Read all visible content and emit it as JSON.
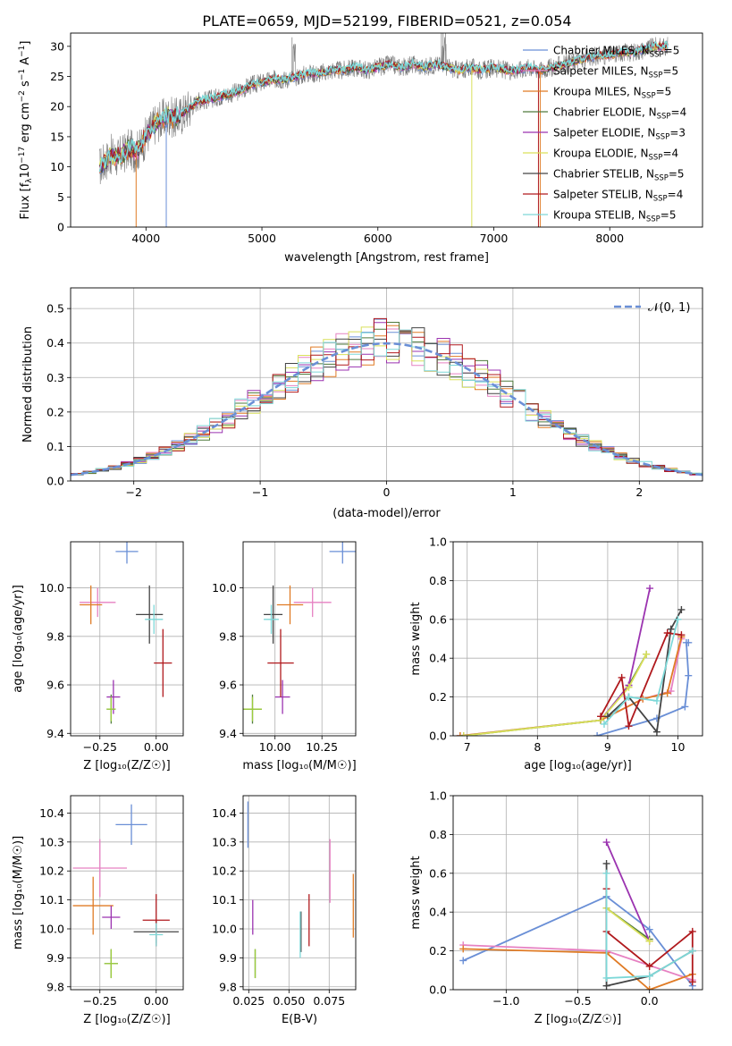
{
  "figure_title": "PLATE=0659, MJD=52199, FIBERID=0521, z=0.054",
  "colors": {
    "Chabrier MILES": "#6a8fd6",
    "Salpeter MILES": "#e681c2",
    "Kroupa MILES": "#e07b25",
    "Chabrier ELODIE": "#4f7a3c",
    "Salpeter ELODIE": "#9b33b0",
    "Kroupa ELODIE": "#d9e05a",
    "Chabrier STELIB": "#444444",
    "Salpeter STELIB": "#b0191d",
    "Kroupa STELIB": "#7dd8d8",
    "gaussian": "#6a8fd6",
    "grid": "#b0b0b0",
    "mass_kroupa_elodie": "#9ccc3c"
  },
  "chart_data": [
    {
      "type": "line",
      "title": "PLATE=0659, MJD=52199, FIBERID=0521, z=0.054",
      "xlabel": "wavelength [Angstrom, rest frame]",
      "ylabel": "Flux [f_λ 10^-17 erg cm^-2 s^-1 A^-1]",
      "xlim": [
        3350,
        8800
      ],
      "ylim": [
        0,
        32.2
      ],
      "xticks": [
        4000,
        5000,
        6000,
        7000,
        8000
      ],
      "yticks": [
        0,
        5,
        10,
        15,
        20,
        25,
        30
      ],
      "legend_position": "right",
      "grid": false,
      "legend": [
        {
          "name": "Chabrier MILES",
          "n": "5"
        },
        {
          "name": "Salpeter MILES",
          "n": "5"
        },
        {
          "name": "Kroupa MILES",
          "n": "5"
        },
        {
          "name": "Chabrier ELODIE",
          "n": "4"
        },
        {
          "name": "Salpeter ELODIE",
          "n": "3"
        },
        {
          "name": "Kroupa ELODIE",
          "n": "4"
        },
        {
          "name": "Chabrier STELIB",
          "n": "5"
        },
        {
          "name": "Salpeter STELIB",
          "n": "4"
        },
        {
          "name": "Kroupa STELIB",
          "n": "5"
        }
      ],
      "spectrum": {
        "x": [
          3600,
          3650,
          3700,
          3750,
          3800,
          3850,
          3900,
          3950,
          4000,
          4050,
          4100,
          4150,
          4200,
          4250,
          4300,
          4350,
          4400,
          4450,
          4500,
          4600,
          4700,
          4800,
          4900,
          5000,
          5100,
          5200,
          5300,
          5400,
          5500,
          5600,
          5700,
          5800,
          5900,
          6000,
          6100,
          6200,
          6300,
          6400,
          6500,
          6600,
          6700,
          6800,
          6900,
          7000,
          7100,
          7200,
          7300,
          7400,
          7500,
          7600,
          7700,
          7800,
          7900,
          8000,
          8100,
          8200,
          8300,
          8400,
          8500
        ],
        "y": [
          10,
          11,
          12,
          11.5,
          12,
          13,
          12.5,
          13,
          15,
          16.5,
          17.5,
          18,
          18.5,
          18,
          18.5,
          19.5,
          20,
          21,
          21,
          21.5,
          22,
          22.5,
          23.5,
          24,
          24.5,
          24.5,
          25,
          25.5,
          25.5,
          26,
          26,
          26.5,
          26,
          26.5,
          27,
          26.5,
          27,
          26.5,
          27,
          26.5,
          26,
          26.5,
          26,
          26.5,
          26,
          26,
          26.5,
          26,
          26.5,
          27,
          27.5,
          28,
          28.5,
          28.5,
          29,
          29,
          29.5,
          30,
          30
        ]
      }
    },
    {
      "type": "histogram",
      "xlabel": "(data-model)/error",
      "ylabel": "Normed distribution",
      "xlim": [
        -2.5,
        2.5
      ],
      "ylim": [
        0,
        0.56
      ],
      "xticks": [
        -2,
        -1,
        0,
        1,
        2
      ],
      "yticks": [
        0.0,
        0.1,
        0.2,
        0.3,
        0.4,
        0.5
      ],
      "grid": true,
      "legend_label": "𝒩(0, 1)",
      "bin_width": 0.1
    },
    {
      "type": "scatter",
      "xlabel": "Z [log₁₀(Z/Z☉)]",
      "ylabel": "age  [log₁₀(age/yr)]",
      "xlim": [
        -0.38,
        0.12
      ],
      "ylim": [
        9.39,
        10.19
      ],
      "xticks": [
        -0.25,
        0.0
      ],
      "xtick_labels": [
        "−0.25",
        "0.00"
      ],
      "yticks": [
        9.4,
        9.6,
        9.8,
        10.0
      ],
      "points": [
        {
          "series": "Chabrier MILES",
          "x": -0.13,
          "y": 10.15,
          "xerr": 0.05,
          "yerr": 0.05
        },
        {
          "series": "Salpeter MILES",
          "x": -0.26,
          "y": 9.94,
          "xerr": 0.08,
          "yerr": 0.06
        },
        {
          "series": "Kroupa MILES",
          "x": -0.29,
          "y": 9.93,
          "xerr": 0.05,
          "yerr": 0.08
        },
        {
          "series": "Chabrier ELODIE",
          "x": -0.2,
          "y": 9.5,
          "xerr": 0.02,
          "yerr": 0.06
        },
        {
          "series": "Salpeter ELODIE",
          "x": -0.19,
          "y": 9.55,
          "xerr": 0.03,
          "yerr": 0.07
        },
        {
          "series": "Kroupa ELODIE",
          "x": -0.2,
          "y": 9.5,
          "xerr": 0.02,
          "yerr": 0.05
        },
        {
          "series": "Chabrier STELIB",
          "x": -0.03,
          "y": 9.89,
          "xerr": 0.06,
          "yerr": 0.12
        },
        {
          "series": "Salpeter STELIB",
          "x": 0.03,
          "y": 9.69,
          "xerr": 0.04,
          "yerr": 0.14
        },
        {
          "series": "Kroupa STELIB",
          "x": -0.01,
          "y": 9.87,
          "xerr": 0.04,
          "yerr": 0.06
        }
      ]
    },
    {
      "type": "scatter",
      "xlabel": "mass [log₁₀(M/M☉)]",
      "ylabel": "",
      "xlim": [
        9.83,
        10.43
      ],
      "ylim": [
        9.39,
        10.19
      ],
      "xticks": [
        10.0,
        10.25
      ],
      "xtick_labels": [
        "10.00",
        "10.25"
      ],
      "yticks": [
        9.4,
        9.6,
        9.8,
        10.0
      ],
      "points": [
        {
          "series": "Chabrier MILES",
          "x": 10.36,
          "y": 10.15,
          "xerr": 0.07,
          "yerr": 0.05
        },
        {
          "series": "Salpeter MILES",
          "x": 10.2,
          "y": 9.94,
          "xerr": 0.1,
          "yerr": 0.06
        },
        {
          "series": "Kroupa MILES",
          "x": 10.08,
          "y": 9.93,
          "xerr": 0.07,
          "yerr": 0.08
        },
        {
          "series": "Chabrier ELODIE",
          "x": 9.88,
          "y": 9.5,
          "xerr": 0.05,
          "yerr": 0.06
        },
        {
          "series": "Salpeter ELODIE",
          "x": 10.04,
          "y": 9.55,
          "xerr": 0.04,
          "yerr": 0.07
        },
        {
          "series": "Kroupa ELODIE",
          "x": 9.88,
          "y": 9.5,
          "xerr": 0.05,
          "yerr": 0.05
        },
        {
          "series": "Chabrier STELIB",
          "x": 9.99,
          "y": 9.89,
          "xerr": 0.05,
          "yerr": 0.12
        },
        {
          "series": "Salpeter STELIB",
          "x": 10.03,
          "y": 9.69,
          "xerr": 0.07,
          "yerr": 0.14
        },
        {
          "series": "Kroupa STELIB",
          "x": 9.98,
          "y": 9.87,
          "xerr": 0.04,
          "yerr": 0.06
        }
      ]
    },
    {
      "type": "line",
      "xlabel": "age  [log₁₀(age/yr)]",
      "ylabel": "mass weight",
      "xlim": [
        6.8,
        10.35
      ],
      "ylim": [
        0,
        1.0
      ],
      "xticks": [
        7,
        8,
        9,
        10
      ],
      "yticks": [
        0.0,
        0.2,
        0.4,
        0.6,
        0.8,
        1.0
      ],
      "grid": true,
      "series": [
        {
          "name": "Chabrier MILES",
          "x": [
            8.85,
            9.7,
            10.1,
            10.15,
            10.12,
            10.15
          ],
          "y": [
            0.0,
            0.09,
            0.15,
            0.31,
            0.48,
            0.48
          ]
        },
        {
          "name": "Salpeter MILES",
          "x": [
            6.9,
            8.9,
            9.5,
            9.9,
            10.05
          ],
          "y": [
            0.0,
            0.08,
            0.19,
            0.23,
            0.5
          ]
        },
        {
          "name": "Kroupa MILES",
          "x": [
            6.9,
            8.9,
            9.5,
            9.85,
            10.05
          ],
          "y": [
            0.0,
            0.08,
            0.19,
            0.22,
            0.51
          ]
        },
        {
          "name": "Chabrier ELODIE",
          "x": [
            6.95,
            8.9,
            9.3,
            9.55
          ],
          "y": [
            0.0,
            0.08,
            0.26,
            0.42
          ]
        },
        {
          "name": "Salpeter ELODIE",
          "x": [
            8.9,
            9.3,
            9.6
          ],
          "y": [
            0.08,
            0.26,
            0.76
          ]
        },
        {
          "name": "Kroupa ELODIE",
          "x": [
            6.95,
            8.9,
            9.3,
            9.55
          ],
          "y": [
            0.0,
            0.08,
            0.25,
            0.42
          ]
        },
        {
          "name": "Chabrier STELIB",
          "x": [
            9.0,
            9.3,
            9.7,
            9.9,
            10.05
          ],
          "y": [
            0.1,
            0.2,
            0.02,
            0.55,
            0.65
          ]
        },
        {
          "name": "Salpeter STELIB",
          "x": [
            8.9,
            9.2,
            9.3,
            9.85,
            10.05
          ],
          "y": [
            0.1,
            0.3,
            0.05,
            0.53,
            0.52
          ]
        },
        {
          "name": "Kroupa STELIB",
          "x": [
            8.95,
            9.3,
            9.7,
            10.0
          ],
          "y": [
            0.06,
            0.2,
            0.18,
            0.6
          ]
        }
      ]
    },
    {
      "type": "scatter",
      "xlabel": "Z [log₁₀(Z/Z☉)]",
      "ylabel": "mass [log₁₀(M/M☉)]",
      "xlim": [
        -0.38,
        0.12
      ],
      "ylim": [
        9.79,
        10.46
      ],
      "xticks": [
        -0.25,
        0.0
      ],
      "xtick_labels": [
        "−0.25",
        "0.00"
      ],
      "yticks": [
        9.8,
        9.9,
        10.0,
        10.1,
        10.2,
        10.3,
        10.4
      ],
      "points": [
        {
          "series": "Chabrier MILES",
          "x": -0.11,
          "y": 10.36,
          "xerr": 0.07,
          "yerr": 0.07
        },
        {
          "series": "Salpeter MILES",
          "x": -0.25,
          "y": 10.21,
          "xerr": 0.12,
          "yerr": 0.1
        },
        {
          "series": "Kroupa MILES",
          "x": -0.28,
          "y": 10.08,
          "xerr": 0.09,
          "yerr": 0.1
        },
        {
          "series": "Chabrier ELODIE",
          "x": -0.2,
          "y": 9.88,
          "xerr": 0.03,
          "yerr": 0.05
        },
        {
          "series": "Salpeter ELODIE",
          "x": -0.2,
          "y": 10.04,
          "xerr": 0.04,
          "yerr": 0.04
        },
        {
          "series": "Kroupa ELODIE",
          "x": -0.2,
          "y": 9.88,
          "xerr": 0.03,
          "yerr": 0.05
        },
        {
          "series": "Chabrier STELIB",
          "x": 0.0,
          "y": 9.99,
          "xerr": 0.1,
          "yerr": 0.04
        },
        {
          "series": "Salpeter STELIB",
          "x": 0.0,
          "y": 10.03,
          "xerr": 0.06,
          "yerr": 0.09
        },
        {
          "series": "Kroupa STELIB",
          "x": 0.0,
          "y": 9.98,
          "xerr": 0.03,
          "yerr": 0.04
        }
      ]
    },
    {
      "type": "scatter",
      "xlabel": "E(B-V)",
      "ylabel": "",
      "xlim": [
        0.0215,
        0.0915
      ],
      "ylim": [
        9.79,
        10.46
      ],
      "xticks": [
        0.025,
        0.05,
        0.075
      ],
      "xtick_labels": [
        "0.025",
        "0.050",
        "0.075"
      ],
      "yticks": [
        9.8,
        9.9,
        10.0,
        10.1,
        10.2,
        10.3,
        10.4
      ],
      "points": [
        {
          "series": "Chabrier MILES",
          "x": 0.0245,
          "y": 10.36,
          "xerr": 0,
          "yerr": 0.08
        },
        {
          "series": "Salpeter MILES",
          "x": 0.0755,
          "y": 10.2,
          "xerr": 0,
          "yerr": 0.11
        },
        {
          "series": "Kroupa MILES",
          "x": 0.09,
          "y": 10.08,
          "xerr": 0,
          "yerr": 0.11
        },
        {
          "series": "Chabrier ELODIE",
          "x": 0.029,
          "y": 9.88,
          "xerr": 0,
          "yerr": 0.05
        },
        {
          "series": "Salpeter ELODIE",
          "x": 0.0275,
          "y": 10.04,
          "xerr": 0,
          "yerr": 0.06
        },
        {
          "series": "Kroupa ELODIE",
          "x": 0.029,
          "y": 9.88,
          "xerr": 0,
          "yerr": 0.05
        },
        {
          "series": "Chabrier STELIB",
          "x": 0.0575,
          "y": 9.99,
          "xerr": 0,
          "yerr": 0.07
        },
        {
          "series": "Salpeter STELIB",
          "x": 0.0625,
          "y": 10.03,
          "xerr": 0,
          "yerr": 0.09
        },
        {
          "series": "Kroupa STELIB",
          "x": 0.057,
          "y": 9.98,
          "xerr": 0,
          "yerr": 0.08
        }
      ]
    },
    {
      "type": "line",
      "xlabel": "Z [log₁₀(Z/Z☉)]",
      "ylabel": "mass weight",
      "xlim": [
        -1.37,
        0.37
      ],
      "ylim": [
        0,
        1.0
      ],
      "xticks": [
        -1.0,
        -0.5,
        0.0
      ],
      "xtick_labels": [
        "−1.0",
        "−0.5",
        "0.0"
      ],
      "yticks": [
        0.0,
        0.2,
        0.4,
        0.6,
        0.8,
        1.0
      ],
      "grid": true,
      "series": [
        {
          "name": "Chabrier MILES",
          "x": [
            -1.3,
            -0.3,
            0.0,
            0.3
          ],
          "y": [
            0.15,
            0.48,
            0.31,
            0.02
          ]
        },
        {
          "name": "Salpeter MILES",
          "x": [
            -1.3,
            -0.3,
            0.3
          ],
          "y": [
            0.23,
            0.2,
            0.05
          ]
        },
        {
          "name": "Kroupa MILES",
          "x": [
            -1.3,
            -0.3,
            0.0,
            0.3
          ],
          "y": [
            0.21,
            0.19,
            0.0,
            0.08
          ]
        },
        {
          "name": "Chabrier ELODIE",
          "x": [
            -0.3,
            0.0
          ],
          "y": [
            0.42,
            0.26
          ]
        },
        {
          "name": "Salpeter ELODIE",
          "x": [
            -0.3,
            0.0
          ],
          "y": [
            0.76,
            0.25
          ]
        },
        {
          "name": "Kroupa ELODIE",
          "x": [
            -0.3,
            0.0
          ],
          "y": [
            0.42,
            0.25
          ]
        },
        {
          "name": "Chabrier STELIB",
          "x": [
            -0.3,
            -0.3,
            0.0,
            0.3
          ],
          "y": [
            0.65,
            0.02,
            0.07,
            0.2
          ]
        },
        {
          "name": "Salpeter STELIB",
          "x": [
            -0.3,
            -0.3,
            0.0,
            0.3,
            0.3
          ],
          "y": [
            0.52,
            0.3,
            0.12,
            0.3,
            0.04
          ]
        },
        {
          "name": "Kroupa STELIB",
          "x": [
            -0.3,
            -0.3,
            0.0,
            0.3
          ],
          "y": [
            0.6,
            0.06,
            0.07,
            0.2
          ]
        }
      ]
    }
  ]
}
